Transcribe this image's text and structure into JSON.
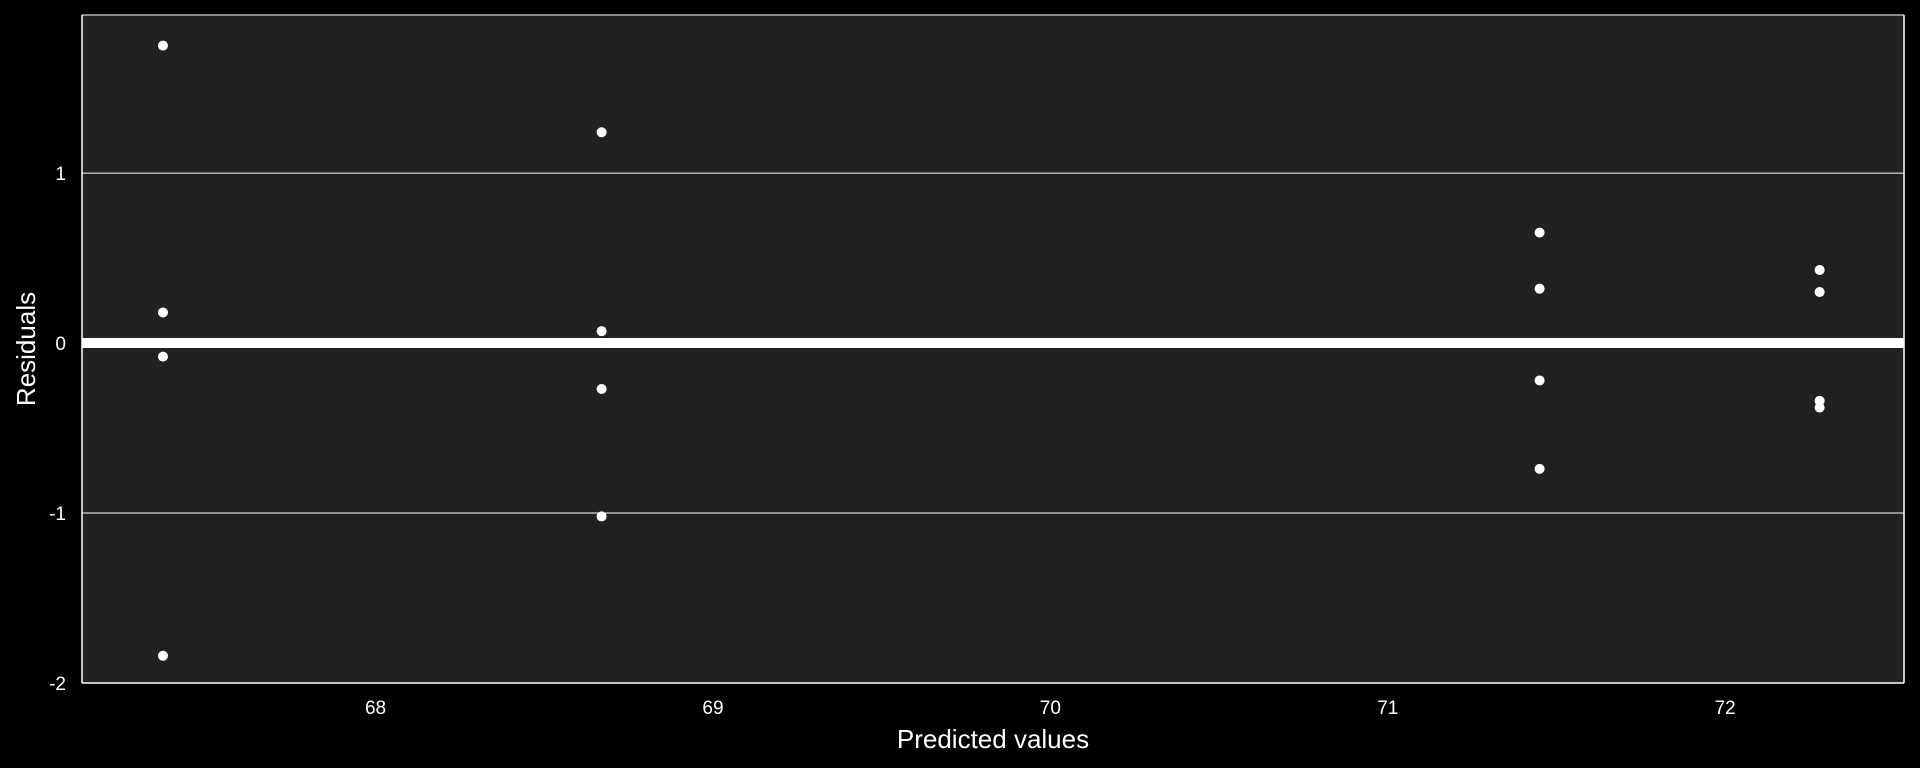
{
  "chart_data": {
    "type": "scatter",
    "title": "",
    "xlabel": "Predicted values",
    "ylabel": "Residuals",
    "xlim": [
      67.13,
      72.53
    ],
    "ylim": [
      -2.0,
      1.93
    ],
    "x_ticks": [
      68,
      69,
      70,
      71,
      72
    ],
    "x_tick_labels": [
      "68",
      "69",
      "70",
      "71",
      "72"
    ],
    "y_ticks": [
      -2,
      -1,
      0,
      1
    ],
    "y_tick_labels": [
      "-2",
      "-1",
      "0",
      "1"
    ],
    "grid": true,
    "reference_line": 0,
    "colors": {
      "background": "#000000",
      "panel": "#212121",
      "grid": "#ffffff",
      "points": "#ffffff",
      "reference_line": "#ffffff"
    },
    "points": [
      {
        "x": 67.37,
        "y": 1.75
      },
      {
        "x": 67.37,
        "y": 0.18
      },
      {
        "x": 67.37,
        "y": -0.08
      },
      {
        "x": 67.37,
        "y": -1.84
      },
      {
        "x": 68.67,
        "y": 1.24
      },
      {
        "x": 68.67,
        "y": 0.07
      },
      {
        "x": 68.67,
        "y": -0.27
      },
      {
        "x": 68.67,
        "y": -1.02
      },
      {
        "x": 71.45,
        "y": 0.65
      },
      {
        "x": 71.45,
        "y": 0.32
      },
      {
        "x": 71.45,
        "y": -0.22
      },
      {
        "x": 71.45,
        "y": -0.74
      },
      {
        "x": 72.28,
        "y": 0.43
      },
      {
        "x": 72.28,
        "y": 0.3
      },
      {
        "x": 72.28,
        "y": -0.34
      },
      {
        "x": 72.28,
        "y": -0.38
      }
    ]
  }
}
